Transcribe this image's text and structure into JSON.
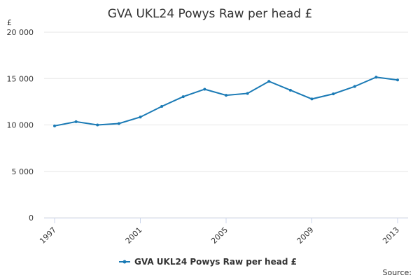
{
  "chart_data": {
    "type": "line",
    "title": "GVA UKL24 Powys Raw per head £",
    "y_label": "£",
    "source": "Source:",
    "categories": [
      "1997",
      null,
      null,
      null,
      "2001",
      null,
      null,
      null,
      "2005",
      null,
      null,
      null,
      "2009",
      null,
      null,
      null,
      "2013"
    ],
    "series": [
      {
        "name": "GVA UKL24 Powys Raw per head £",
        "color": "#1a7ab5",
        "values": [
          9900,
          10350,
          10000,
          10150,
          10850,
          12000,
          13050,
          13850,
          13200,
          13400,
          14700,
          13750,
          12800,
          13350,
          14150,
          15150,
          14850
        ]
      }
    ],
    "ylim": [
      0,
      20000
    ],
    "yticks": [
      {
        "value": 0,
        "label": "0"
      },
      {
        "value": 5000,
        "label": "5 000"
      },
      {
        "value": 10000,
        "label": "10 000"
      },
      {
        "value": 15000,
        "label": "15 000"
      },
      {
        "value": 20000,
        "label": "20 000"
      }
    ],
    "grid": true
  }
}
